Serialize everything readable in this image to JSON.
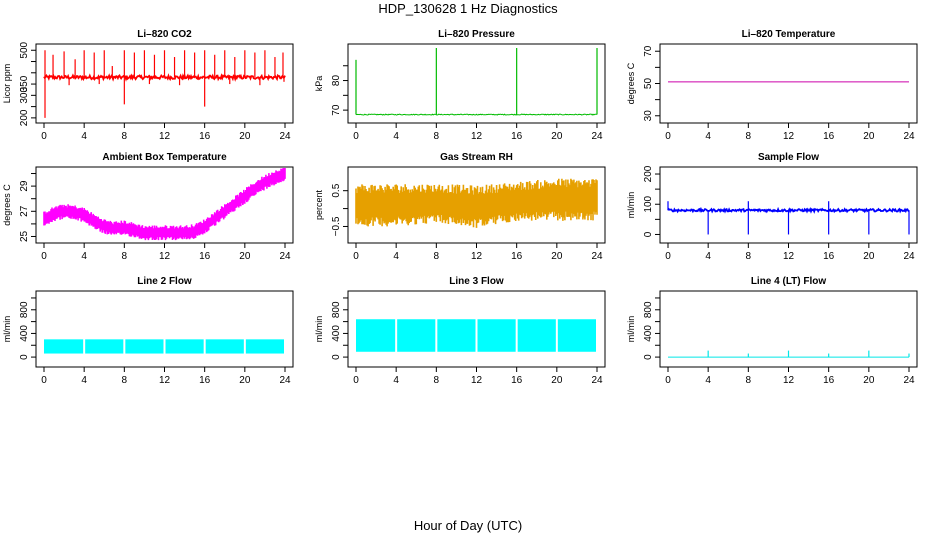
{
  "figure": {
    "title": "HDP_130628  1 Hz Diagnostics",
    "xlabel": "Hour of Day (UTC)"
  },
  "chart_data": [
    {
      "type": "line",
      "title": "Li–820 CO2",
      "ylabel": "Licor ppm",
      "color": "#ff0000",
      "ylim": [
        195,
        510
      ],
      "yticks": [
        200,
        250,
        300,
        350,
        400,
        450,
        500
      ],
      "yticklabels": [
        "200",
        "",
        "300",
        "350",
        "",
        "",
        "500"
      ],
      "xlim": [
        0,
        24
      ],
      "xticks": [
        0,
        4,
        8,
        12,
        16,
        20,
        24
      ],
      "baseline": 380,
      "noise": 8,
      "spikes_up": [
        [
          0.1,
          500
        ],
        [
          0.9,
          480
        ],
        [
          2.0,
          495
        ],
        [
          3.1,
          460
        ],
        [
          4.0,
          500
        ],
        [
          5.0,
          490
        ],
        [
          6.0,
          500
        ],
        [
          6.8,
          430
        ],
        [
          8.0,
          500
        ],
        [
          9.0,
          490
        ],
        [
          10.0,
          500
        ],
        [
          11.0,
          480
        ],
        [
          12.0,
          500
        ],
        [
          13.0,
          470
        ],
        [
          14.0,
          500
        ],
        [
          15.0,
          490
        ],
        [
          16.0,
          500
        ],
        [
          17.0,
          480
        ],
        [
          18.0,
          500
        ],
        [
          19.0,
          470
        ],
        [
          20.0,
          500
        ],
        [
          21.0,
          490
        ],
        [
          22.0,
          500
        ],
        [
          23.0,
          470
        ],
        [
          23.8,
          490
        ]
      ],
      "spikes_down": [
        [
          0.1,
          200
        ],
        [
          8.0,
          260
        ],
        [
          16.0,
          250
        ],
        [
          2.5,
          345
        ],
        [
          5.5,
          350
        ],
        [
          10.5,
          350
        ],
        [
          13.5,
          345
        ],
        [
          18.5,
          350
        ],
        [
          21.5,
          345
        ],
        [
          23.9,
          360
        ]
      ]
    },
    {
      "type": "line",
      "title": "Li–820 Pressure",
      "ylabel": "kPa",
      "color": "#00bb00",
      "ylim": [
        67,
        91
      ],
      "yticks": [
        70,
        75,
        80,
        85
      ],
      "yticklabels": [
        "70",
        "",
        "80",
        ""
      ],
      "xlim": [
        0,
        24
      ],
      "xticks": [
        0,
        4,
        8,
        12,
        16,
        20,
        24
      ],
      "baseline": 68.5,
      "noise": 0.15,
      "spikes_up": [
        [
          0.0,
          87
        ],
        [
          8.0,
          91
        ],
        [
          16.0,
          91
        ],
        [
          24.0,
          91
        ]
      ],
      "spikes_down": []
    },
    {
      "type": "line",
      "title": "Li–820 Temperature",
      "ylabel": "degrees C",
      "color": "#cc00aa",
      "ylim": [
        28,
        72
      ],
      "yticks": [
        30,
        40,
        50,
        60,
        70
      ],
      "yticklabels": [
        "30",
        "",
        "50",
        "",
        "70"
      ],
      "xlim": [
        0,
        24
      ],
      "xticks": [
        0,
        4,
        8,
        12,
        16,
        20,
        24
      ],
      "baseline": 51,
      "noise": 0,
      "spikes_up": [],
      "spikes_down": []
    },
    {
      "type": "area",
      "title": "Ambient Box Temperature",
      "ylabel": "degrees C",
      "color": "#ff00ff",
      "ylim": [
        24.8,
        30.2
      ],
      "yticks": [
        25,
        26,
        27,
        28,
        29,
        30
      ],
      "yticklabels": [
        "25",
        "",
        "27",
        "",
        "29",
        ""
      ],
      "xlim": [
        0,
        24
      ],
      "xticks": [
        0,
        4,
        8,
        12,
        16,
        20,
        24
      ],
      "band": [
        [
          0,
          26.4,
          0.6
        ],
        [
          1,
          26.8,
          0.6
        ],
        [
          2,
          27.0,
          0.6
        ],
        [
          3,
          26.9,
          0.6
        ],
        [
          4,
          26.7,
          0.6
        ],
        [
          5,
          26.2,
          0.6
        ],
        [
          6,
          25.8,
          0.6
        ],
        [
          7,
          25.6,
          0.6
        ],
        [
          8,
          25.7,
          0.6
        ],
        [
          9,
          25.5,
          0.6
        ],
        [
          10,
          25.3,
          0.6
        ],
        [
          11,
          25.3,
          0.6
        ],
        [
          12,
          25.3,
          0.6
        ],
        [
          13,
          25.3,
          0.6
        ],
        [
          14,
          25.3,
          0.6
        ],
        [
          15,
          25.4,
          0.6
        ],
        [
          16,
          25.8,
          0.6
        ],
        [
          17,
          26.4,
          0.6
        ],
        [
          18,
          27.0,
          0.6
        ],
        [
          19,
          27.6,
          0.6
        ],
        [
          20,
          28.2,
          0.6
        ],
        [
          21,
          28.8,
          0.6
        ],
        [
          22,
          29.3,
          0.6
        ],
        [
          23,
          29.7,
          0.6
        ],
        [
          24,
          30.0,
          0.6
        ]
      ]
    },
    {
      "type": "area",
      "title": "Gas Stream RH",
      "ylabel": "percent",
      "color": "#e6a000",
      "ylim": [
        -0.85,
        1.05
      ],
      "yticks": [
        -0.5,
        0,
        0.5
      ],
      "yticklabels": [
        "−0.5",
        "",
        "0.5"
      ],
      "xlim": [
        0,
        24
      ],
      "xticks": [
        0,
        4,
        8,
        12,
        16,
        20,
        24
      ],
      "band": [
        [
          0,
          0.1,
          0.6
        ],
        [
          4,
          0.1,
          0.6
        ],
        [
          8,
          0.15,
          0.55
        ],
        [
          12,
          0.05,
          0.6
        ],
        [
          16,
          0.2,
          0.55
        ],
        [
          20,
          0.25,
          0.6
        ],
        [
          24,
          0.25,
          0.6
        ]
      ]
    },
    {
      "type": "line",
      "title": "Sample Flow",
      "ylabel": "ml/min",
      "color": "#0000ff",
      "ylim": [
        -15,
        210
      ],
      "yticks": [
        0,
        50,
        100,
        150,
        200
      ],
      "yticklabels": [
        "0",
        "",
        "100",
        "",
        "200"
      ],
      "xlim": [
        0,
        24
      ],
      "xticks": [
        0,
        4,
        8,
        12,
        16,
        20,
        24
      ],
      "baseline": 80,
      "noise": 4,
      "spikes_up": [
        [
          0.0,
          110
        ],
        [
          8.0,
          110
        ],
        [
          16.0,
          110
        ]
      ],
      "spikes_down": [
        [
          4.0,
          0
        ],
        [
          8.0,
          0
        ],
        [
          12.0,
          0
        ],
        [
          16.0,
          0
        ],
        [
          20.0,
          0
        ],
        [
          24.0,
          0
        ]
      ]
    },
    {
      "type": "area",
      "title": "Line 2 Flow",
      "ylabel": "ml/min",
      "color": "#00ffff",
      "ylim": [
        -100,
        1050
      ],
      "yticks": [
        0,
        200,
        400,
        600,
        800,
        1000
      ],
      "yticklabels": [
        "0",
        "",
        "400",
        "",
        "800",
        ""
      ],
      "xlim": [
        0,
        24
      ],
      "xticks": [
        0,
        4,
        8,
        12,
        16,
        20,
        24
      ],
      "block": [
        60,
        300
      ],
      "gaps": [
        4,
        8,
        12,
        16,
        20
      ]
    },
    {
      "type": "area",
      "title": "Line 3 Flow",
      "ylabel": "ml/min",
      "color": "#00ffff",
      "ylim": [
        -100,
        1050
      ],
      "yticks": [
        0,
        200,
        400,
        600,
        800,
        1000
      ],
      "yticklabels": [
        "0",
        "",
        "400",
        "",
        "800",
        ""
      ],
      "xlim": [
        0,
        24
      ],
      "xticks": [
        0,
        4,
        8,
        12,
        16,
        20,
        24
      ],
      "block": [
        90,
        640
      ],
      "gaps": [
        4,
        8,
        12,
        16,
        20
      ]
    },
    {
      "type": "line",
      "title": "Line 4 (LT) Flow",
      "ylabel": "ml/min",
      "color": "#00e6e6",
      "ylim": [
        -100,
        1050
      ],
      "yticks": [
        0,
        200,
        400,
        600,
        800,
        1000
      ],
      "yticklabels": [
        "0",
        "",
        "400",
        "",
        "800",
        ""
      ],
      "xlim": [
        0,
        24
      ],
      "xticks": [
        0,
        4,
        8,
        12,
        16,
        20,
        24
      ],
      "baseline": 0,
      "noise": 0,
      "spikes_up": [
        [
          4.0,
          110
        ],
        [
          8.0,
          60
        ],
        [
          12.0,
          110
        ],
        [
          16.0,
          60
        ],
        [
          20.0,
          110
        ],
        [
          24.0,
          60
        ]
      ],
      "spikes_down": []
    }
  ]
}
